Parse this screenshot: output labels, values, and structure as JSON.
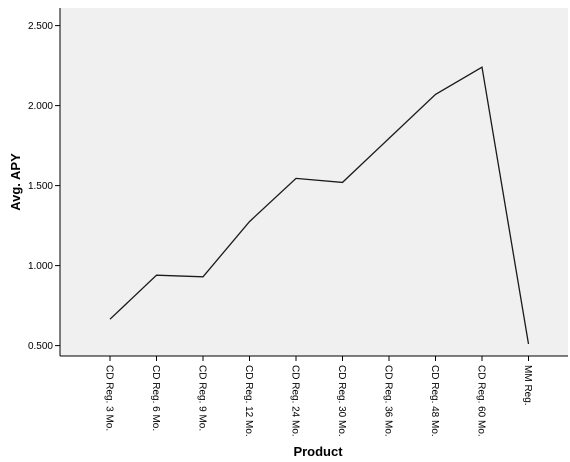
{
  "chart_data": {
    "type": "line",
    "title": "",
    "xlabel": "Product",
    "ylabel": "Avg. APY",
    "categories": [
      "CD Reg. 3 Mo.",
      "CD Reg. 6 Mo.",
      "CD Reg. 9 Mo.",
      "CD Reg. 12 Mo.",
      "CD Reg. 24 Mo.",
      "CD Reg. 30 Mo.",
      "CD Reg. 36 Mo.",
      "CD Reg. 48 Mo.",
      "CD Reg. 60 Mo.",
      "MM Reg."
    ],
    "values": [
      0.665,
      0.94,
      0.93,
      1.275,
      1.545,
      1.52,
      1.795,
      2.07,
      2.24,
      0.51
    ],
    "yticks": [
      "0.500",
      "1.000",
      "1.500",
      "2.000",
      "2.500"
    ],
    "ytick_values": [
      0.5,
      1.0,
      1.5,
      2.0,
      2.5
    ],
    "ylim": [
      0.435,
      2.61
    ],
    "grid": false,
    "legend": "none",
    "colors": {
      "plot_background": "#f0f0f0",
      "line": "#1a1a1a",
      "axis": "#000000"
    }
  }
}
